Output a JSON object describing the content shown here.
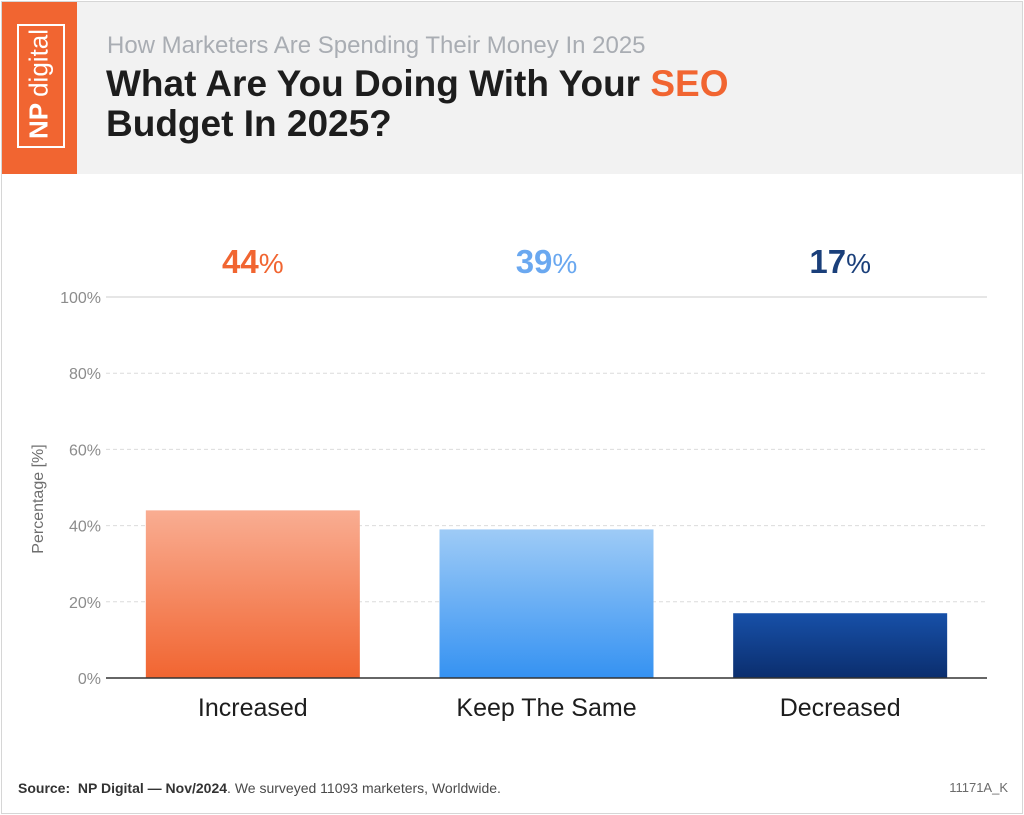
{
  "brand": {
    "np": "NP",
    "digital": "digital"
  },
  "header": {
    "subtitle": "How Marketers Are Spending Their Money In 2025",
    "title_pre": "What Are You Doing With Your ",
    "title_accent": "SEO",
    "title_line2": "Budget In 2025?"
  },
  "colors": {
    "brand_orange": "#f16531",
    "light_blue": "#6aa8f0",
    "navy": "#1a3f7a"
  },
  "chart_data": {
    "type": "bar",
    "categories": [
      "Increased",
      "Keep The Same",
      "Decreased"
    ],
    "values": [
      44,
      39,
      17
    ],
    "value_labels": [
      {
        "num": "44",
        "unit": "%"
      },
      {
        "num": "39",
        "unit": "%"
      },
      {
        "num": "17",
        "unit": "%"
      }
    ],
    "ylabel": "Percentage [%]",
    "ylim": [
      0,
      100
    ],
    "yticks": [
      "0%",
      "20%",
      "40%",
      "60%",
      "80%",
      "100%"
    ],
    "ytick_values": [
      0,
      20,
      40,
      60,
      80,
      100
    ],
    "grid": true,
    "bar_colors": [
      {
        "top": "#f9ad92",
        "bottom": "#f16531",
        "label": "#f16531"
      },
      {
        "top": "#9ecbf6",
        "bottom": "#3592f2",
        "label": "#6aa8f0"
      },
      {
        "top": "#1750a8",
        "bottom": "#0b2e6e",
        "label": "#1a3f7a"
      }
    ]
  },
  "footer": {
    "source_label": "Source:",
    "source_name": "NP Digital — Nov/2024",
    "source_text": ". We surveyed 11093 marketers, Worldwide.",
    "code": "11171A_K"
  }
}
